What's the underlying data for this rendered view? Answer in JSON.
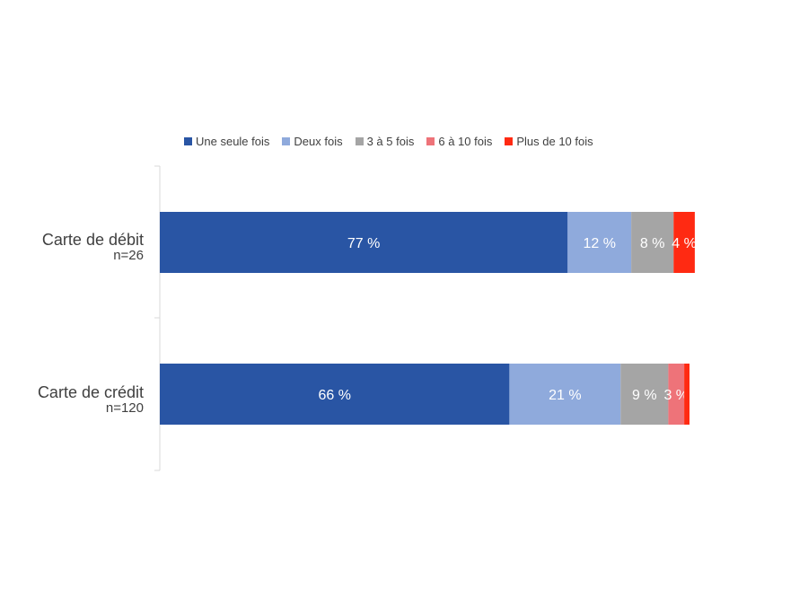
{
  "chart_data": {
    "type": "bar",
    "orientation": "horizontal",
    "stacked": true,
    "categories": [
      {
        "name": "Carte de débit",
        "n": "n=26"
      },
      {
        "name": "Carte de crédit",
        "n": "n=120"
      }
    ],
    "series": [
      {
        "name": "Une seule fois",
        "color": "#2955A4",
        "values": [
          77,
          66
        ],
        "labels": [
          "77 %",
          "66 %"
        ]
      },
      {
        "name": "Deux fois",
        "color": "#8FAADC",
        "values": [
          12,
          21
        ],
        "labels": [
          "12 %",
          "21 %"
        ]
      },
      {
        "name": "3 à 5 fois",
        "color": "#A5A5A5",
        "values": [
          8,
          9
        ],
        "labels": [
          "8 %",
          "9 %"
        ]
      },
      {
        "name": "6 à 10 fois",
        "color": "#EE7379",
        "values": [
          0,
          3
        ],
        "labels": [
          "",
          "3 %"
        ]
      },
      {
        "name": "Plus de 10 fois",
        "color": "#FF2A12",
        "values": [
          4,
          1
        ],
        "labels": [
          "4 %",
          ""
        ]
      }
    ],
    "xlim": [
      0,
      100
    ],
    "legend_position": "top",
    "grid": false
  }
}
